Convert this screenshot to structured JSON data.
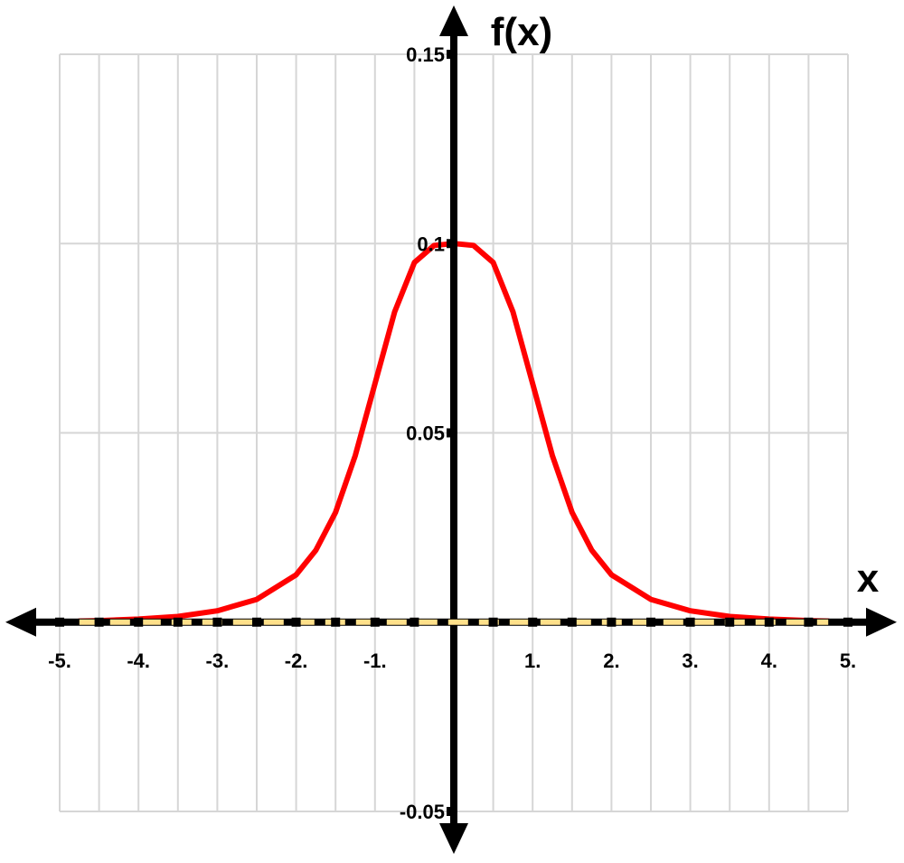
{
  "chart_data": {
    "type": "line",
    "title": "",
    "xlabel": "x",
    "ylabel": "f(x)",
    "xlim": [
      -5,
      5
    ],
    "ylim": [
      -0.05,
      0.15
    ],
    "grid": true,
    "x_ticks": [
      {
        "value": -5,
        "label": "-5."
      },
      {
        "value": -4,
        "label": "-4."
      },
      {
        "value": -3,
        "label": "-3."
      },
      {
        "value": -2,
        "label": "-2."
      },
      {
        "value": -1,
        "label": "-1."
      },
      {
        "value": 1,
        "label": "1."
      },
      {
        "value": 2,
        "label": "2."
      },
      {
        "value": 3,
        "label": "3."
      },
      {
        "value": 4,
        "label": "4."
      },
      {
        "value": 5,
        "label": "5."
      }
    ],
    "y_ticks": [
      {
        "value": 0.15,
        "label": "0.15"
      },
      {
        "value": 0.1,
        "label": "0.1"
      },
      {
        "value": 0.05,
        "label": "0.05"
      },
      {
        "value": -0.05,
        "label": "-0.05"
      }
    ],
    "series": [
      {
        "color": "#ff0000",
        "style": "solid",
        "x": [
          -4.75,
          -4.5,
          -4.0,
          -3.5,
          -3.0,
          -2.5,
          -2.0,
          -1.75,
          -1.5,
          -1.25,
          -1.0,
          -0.75,
          -0.5,
          -0.25,
          0.0,
          0.25,
          0.5,
          0.75,
          1.0,
          1.25,
          1.5,
          1.75,
          2.0,
          2.5,
          3.0,
          3.5,
          4.0,
          4.5,
          4.75
        ],
        "y": [
          0.0003,
          0.0004,
          0.0008,
          0.0015,
          0.003,
          0.006,
          0.0125,
          0.019,
          0.029,
          0.044,
          0.063,
          0.082,
          0.095,
          0.0995,
          0.1,
          0.0995,
          0.095,
          0.082,
          0.063,
          0.044,
          0.029,
          0.019,
          0.0125,
          0.006,
          0.003,
          0.0015,
          0.0008,
          0.0004,
          0.0003
        ]
      },
      {
        "color": "#ffe08a",
        "style": "dashed",
        "x": [
          -4.75,
          4.75
        ],
        "y": [
          0,
          0
        ]
      }
    ]
  }
}
